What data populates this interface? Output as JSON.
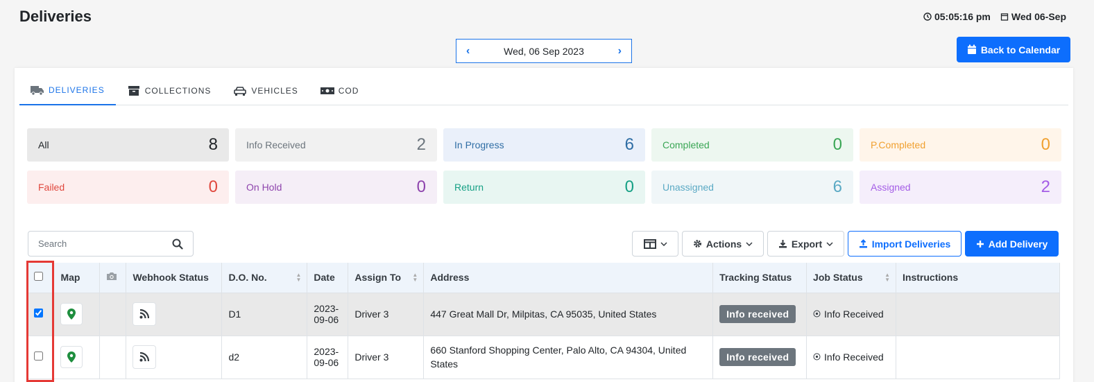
{
  "header": {
    "title": "Deliveries",
    "time": "05:05:16 pm",
    "date": "Wed 06-Sep"
  },
  "date_nav": {
    "current": "Wed, 06 Sep 2023",
    "prev_icon": "chevron-left-icon",
    "next_icon": "chevron-right-icon"
  },
  "back_button": {
    "label": "Back to Calendar",
    "icon": "calendar-icon"
  },
  "tabs": [
    {
      "label": "DELIVERIES",
      "icon": "truck-icon",
      "active": true
    },
    {
      "label": "COLLECTIONS",
      "icon": "archive-icon",
      "active": false
    },
    {
      "label": "VEHICLES",
      "icon": "car-icon",
      "active": false
    },
    {
      "label": "COD",
      "icon": "money-icon",
      "active": false
    }
  ],
  "stats": [
    {
      "label": "All",
      "count": "8",
      "bg": "#e9e9e9",
      "color": "#212529"
    },
    {
      "label": "Info Received",
      "count": "2",
      "bg": "#f1f1f1",
      "color": "#6c757d"
    },
    {
      "label": "In Progress",
      "count": "6",
      "bg": "#eaf0fa",
      "color": "#2e6da4"
    },
    {
      "label": "Completed",
      "count": "0",
      "bg": "#edf7f0",
      "color": "#3aa655"
    },
    {
      "label": "P.Completed",
      "count": "0",
      "bg": "#fff5ea",
      "color": "#f0a030"
    },
    {
      "label": "Failed",
      "count": "0",
      "bg": "#fdeeee",
      "color": "#e0483e"
    },
    {
      "label": "On Hold",
      "count": "0",
      "bg": "#f5eef7",
      "color": "#8e44ad"
    },
    {
      "label": "Return",
      "count": "0",
      "bg": "#e8f6f2",
      "color": "#16a085"
    },
    {
      "label": "Unassigned",
      "count": "6",
      "bg": "#f0f6f8",
      "color": "#5aa9c4"
    },
    {
      "label": "Assigned",
      "count": "2",
      "bg": "#f5eefb",
      "color": "#a45de6"
    }
  ],
  "search": {
    "placeholder": "Search"
  },
  "toolbar": {
    "actions_label": "Actions",
    "export_label": "Export",
    "import_label": "Import Deliveries",
    "add_label": "Add Delivery"
  },
  "table": {
    "columns": [
      "Map",
      "Webhook Status",
      "D.O. No.",
      "Date",
      "Assign To",
      "Address",
      "Tracking Status",
      "Job Status",
      "Instructions"
    ],
    "rows": [
      {
        "checked": true,
        "do_no": "D1",
        "date_line1": "2023-",
        "date_line2": "09-06",
        "assign_to": "Driver 3",
        "address": "447 Great Mall Dr, Milpitas, CA 95035, United States",
        "tracking_status": "Info received",
        "job_status": "Info Received",
        "instructions": ""
      },
      {
        "checked": false,
        "do_no": "d2",
        "date_line1": "2023-",
        "date_line2": "09-06",
        "assign_to": "Driver 3",
        "address": "660 Stanford Shopping Center, Palo Alto, CA 94304, United States",
        "tracking_status": "Info received",
        "job_status": "Info Received",
        "instructions": ""
      }
    ]
  },
  "colors": {
    "primary": "#0d6efd",
    "tab_active": "#1a73e8",
    "map_pin": "#1e8e3e",
    "highlight": "#e53935"
  }
}
